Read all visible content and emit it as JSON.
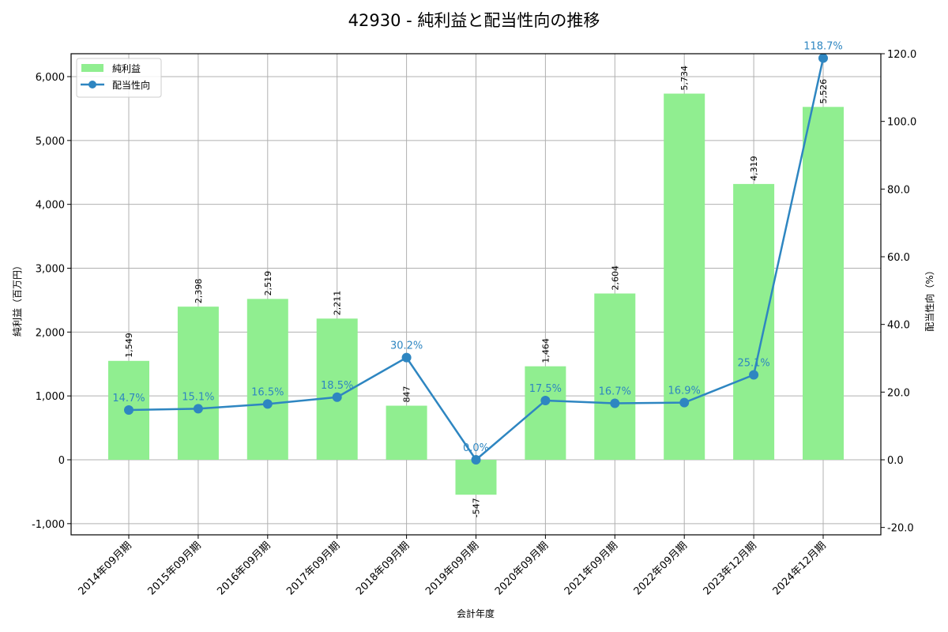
{
  "chart_data": {
    "type": "bar+line",
    "title": "42930 - 純利益と配当性向の推移",
    "xlabel": "会計年度",
    "ylabel_left": "純利益（百万円）",
    "ylabel_right": "配当性向（%）",
    "categories": [
      "2014年09月期",
      "2015年09月期",
      "2016年09月期",
      "2017年09月期",
      "2018年09月期",
      "2019年09月期",
      "2020年09月期",
      "2021年09月期",
      "2022年09月期",
      "2023年12月期",
      "2024年12月期"
    ],
    "series": [
      {
        "name": "純利益",
        "type": "bar",
        "axis": "left",
        "color": "#90ee90",
        "values": [
          1549,
          2398,
          2519,
          2211,
          847,
          -547,
          1464,
          2604,
          5734,
          4319,
          5526
        ],
        "labels": [
          "1,549",
          "2,398",
          "2,519",
          "2,211",
          "847",
          "-547",
          "1,464",
          "2,604",
          "5,734",
          "4,319",
          "5,526"
        ]
      },
      {
        "name": "配当性向",
        "type": "line",
        "axis": "right",
        "color": "#2e86c1",
        "values": [
          14.7,
          15.1,
          16.5,
          18.5,
          30.2,
          0.0,
          17.5,
          16.7,
          16.9,
          25.1,
          118.7
        ],
        "labels": [
          "14.7%",
          "15.1%",
          "16.5%",
          "18.5%",
          "30.2%",
          "0.0%",
          "17.5%",
          "16.7%",
          "16.9%",
          "25.1%",
          "118.7%"
        ]
      }
    ],
    "ylim_left": [
      -1150,
      6350
    ],
    "ylim_right": [
      -22.0,
      120.0
    ],
    "yticks_left": [
      "-1,000",
      "0",
      "1,000",
      "2,000",
      "3,000",
      "4,000",
      "5,000",
      "6,000"
    ],
    "yticks_left_values": [
      -1000,
      0,
      1000,
      2000,
      3000,
      4000,
      5000,
      6000
    ],
    "yticks_right": [
      "-20.0",
      "0.0",
      "20.0",
      "40.0",
      "60.0",
      "80.0",
      "100.0",
      "120.0"
    ],
    "yticks_right_values": [
      -20,
      0,
      20,
      40,
      60,
      80,
      100,
      120
    ],
    "grid": true,
    "legend": {
      "position": "upper left",
      "entries": [
        "純利益",
        "配当性向"
      ]
    }
  }
}
